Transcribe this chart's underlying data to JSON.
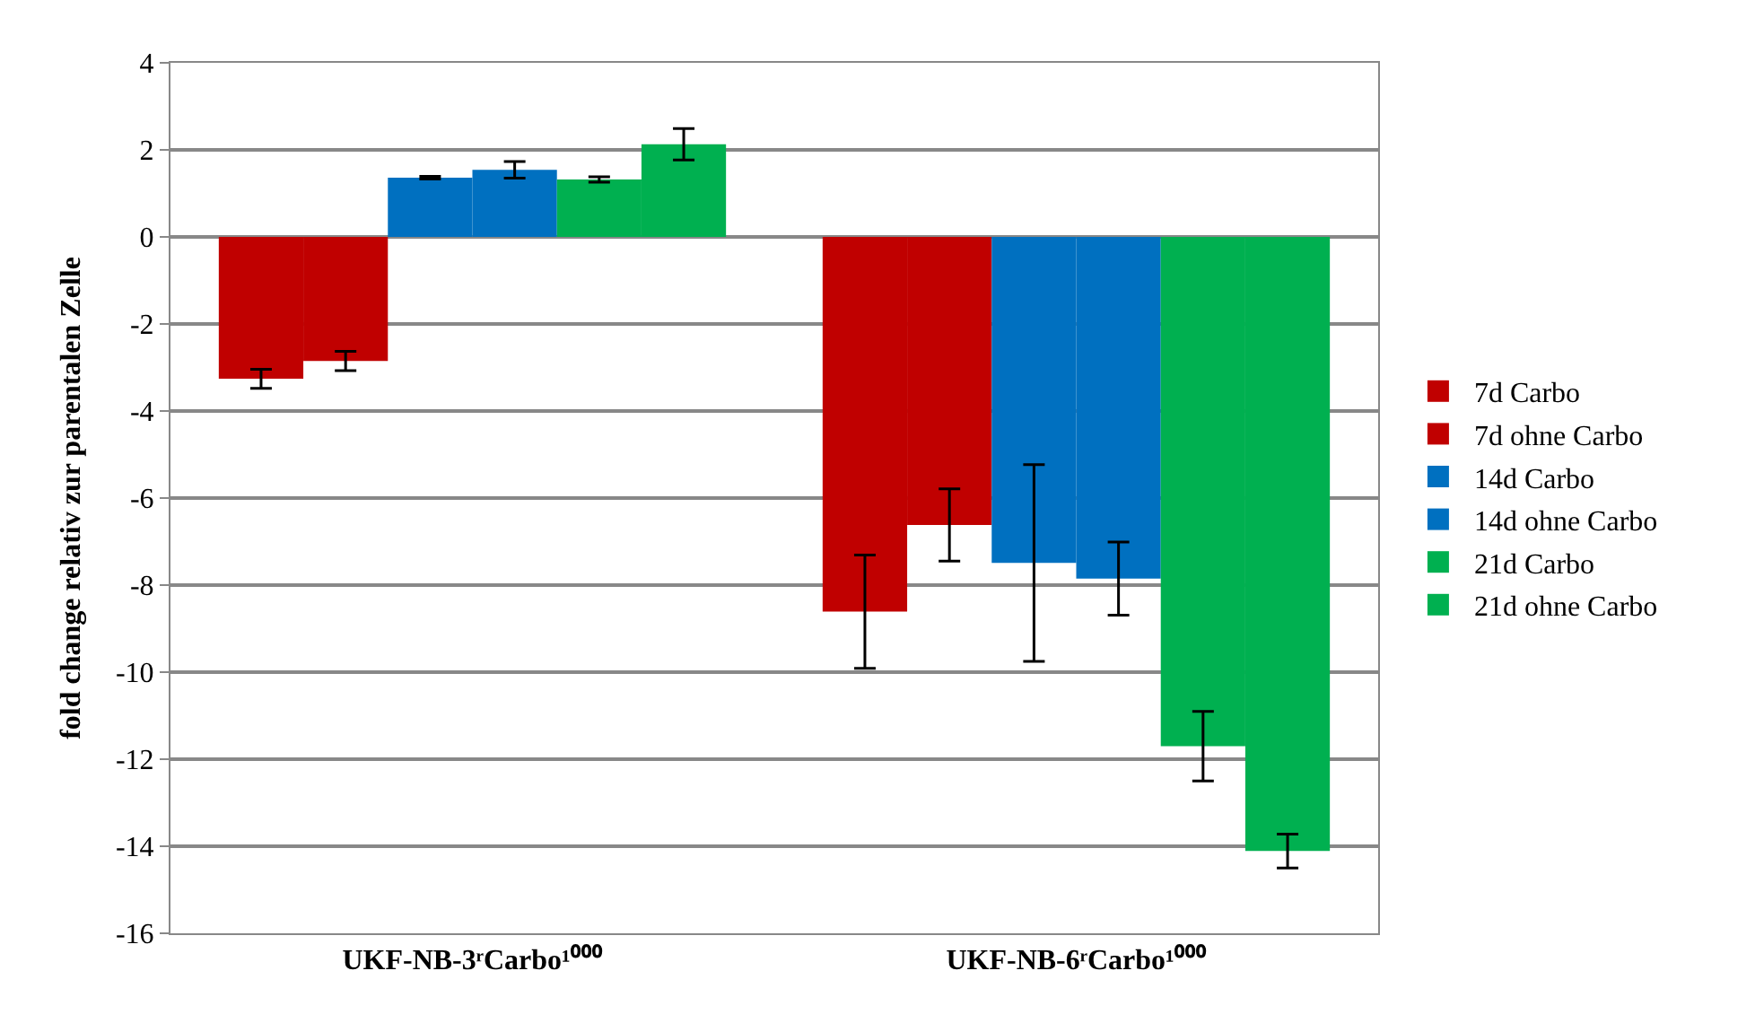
{
  "chart_data": {
    "type": "bar",
    "ylabel": "fold change relativ zur parentalen Zelle",
    "categories": [
      "UKF-NB-3ʳCarbo¹⁰⁰⁰",
      "UKF-NB-6ʳCarbo¹⁰⁰⁰"
    ],
    "series": [
      {
        "name": "7d Carbo",
        "color": "#c00000",
        "values": [
          -3.26,
          -8.61
        ],
        "errors": [
          0.22,
          1.3
        ]
      },
      {
        "name": "7d ohne Carbo",
        "color": "#c00000",
        "values": [
          -2.85,
          -6.62
        ],
        "errors": [
          0.22,
          0.83
        ]
      },
      {
        "name": "14d Carbo",
        "color": "#0070c0",
        "values": [
          1.36,
          -7.49
        ],
        "errors": [
          0.03,
          2.26
        ]
      },
      {
        "name": "14d ohne Carbo",
        "color": "#0070c0",
        "values": [
          1.54,
          -7.85
        ],
        "errors": [
          0.19,
          0.84
        ]
      },
      {
        "name": "21d Carbo",
        "color": "#00b050",
        "values": [
          1.32,
          -11.7
        ],
        "errors": [
          0.06,
          0.8
        ]
      },
      {
        "name": "21d ohne Carbo",
        "color": "#00b050",
        "values": [
          2.13,
          -14.11
        ],
        "errors": [
          0.36,
          0.39
        ]
      }
    ],
    "ylim": [
      -16,
      4
    ],
    "yticks": [
      -16,
      -14,
      -12,
      -10,
      -8,
      -6,
      -4,
      -2,
      0,
      2,
      4
    ],
    "grid": "y",
    "legend": "right"
  }
}
